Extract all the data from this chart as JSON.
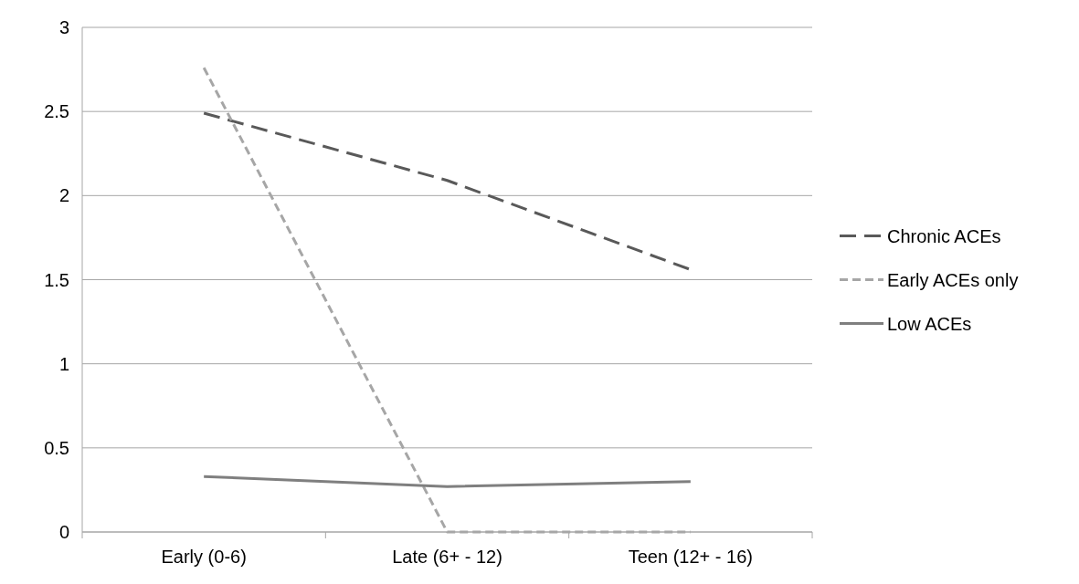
{
  "chart_data": {
    "type": "line",
    "categories": [
      "Early (0-6)",
      "Late (6+ - 12)",
      "Teen (12+ - 16)"
    ],
    "series": [
      {
        "name": "Chronic ACEs",
        "color": "#595959",
        "line_style": "dashed",
        "values": [
          2.49,
          2.09,
          1.56
        ]
      },
      {
        "name": "Early ACEs only",
        "color": "#a6a6a6",
        "line_style": "dashed",
        "values": [
          2.76,
          0,
          0
        ]
      },
      {
        "name": "Low ACEs",
        "color": "#7f7f7f",
        "line_style": "solid",
        "values": [
          0.33,
          0.27,
          0.3
        ]
      }
    ],
    "ylim": [
      0,
      3
    ],
    "yticks": [
      0,
      0.5,
      1,
      1.5,
      2,
      2.5,
      3
    ],
    "grid": "y",
    "legend": "right",
    "marker": "none"
  }
}
